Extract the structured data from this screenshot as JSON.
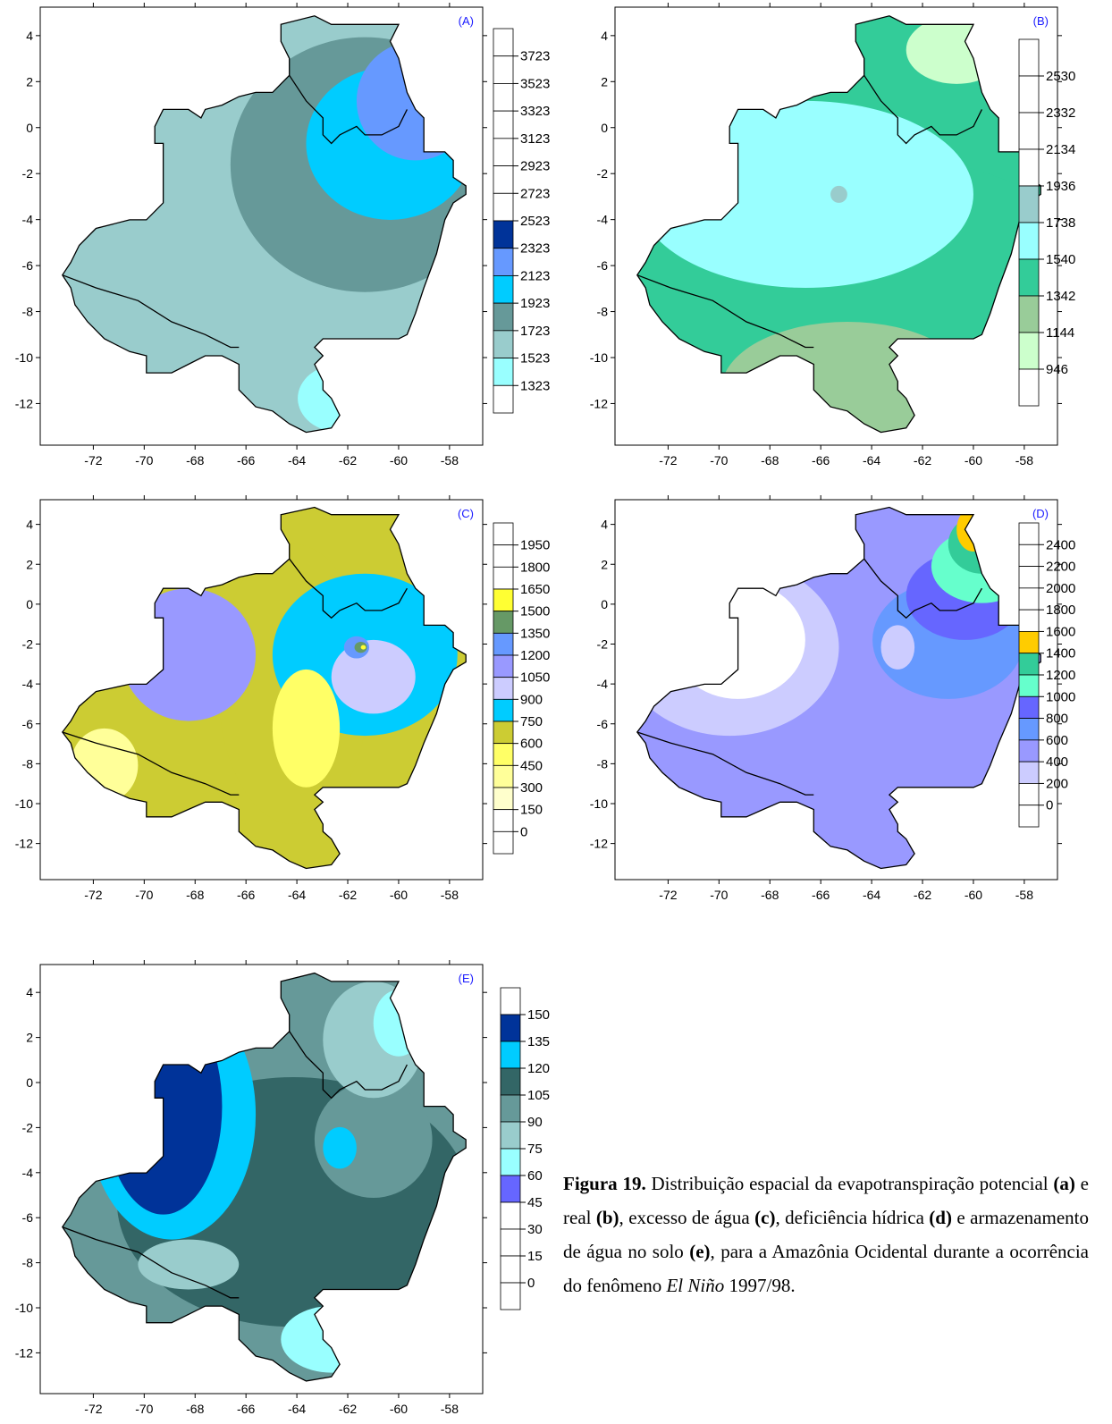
{
  "panels": [
    {
      "id": "A",
      "label": "(A)",
      "legend_ticks": [
        "3723",
        "3523",
        "3323",
        "3123",
        "2923",
        "2723",
        "2523",
        "2323",
        "2123",
        "1923",
        "1723",
        "1523",
        "1323"
      ],
      "legend_colors": [
        "#ffffff",
        "#ffffff",
        "#ffffff",
        "#ffffff",
        "#ffffff",
        "#ffffff",
        "#ffffff",
        "#003399",
        "#6699ff",
        "#00ccff",
        "#669999",
        "#99cccc",
        "#99ffff"
      ],
      "region_colors": [
        "#99cccc",
        "#669999",
        "#00ccff",
        "#6699ff",
        "#003399",
        "#99ffff"
      ],
      "xticks": [
        "-72",
        "-70",
        "-68",
        "-66",
        "-64",
        "-62",
        "-60",
        "-58"
      ],
      "yticks": [
        "4",
        "2",
        "0",
        "-2",
        "-4",
        "-6",
        "-8",
        "-10",
        "-12"
      ]
    },
    {
      "id": "B",
      "label": "(B)",
      "legend_ticks": [
        "2530",
        "2332",
        "2134",
        "1936",
        "1738",
        "1540",
        "1342",
        "1144",
        "946"
      ],
      "legend_colors": [
        "#ffffff",
        "#ffffff",
        "#ffffff",
        "#ffffff",
        "#99cccc",
        "#99ffff",
        "#33cc99",
        "#99cc99",
        "#ccffcc"
      ],
      "region_colors": [
        "#33cc99",
        "#99ffff",
        "#99cc99",
        "#ccffcc",
        "#99cccc"
      ],
      "xticks": [
        "-72",
        "-70",
        "-68",
        "-66",
        "-64",
        "-62",
        "-60",
        "-58"
      ],
      "yticks": [
        "4",
        "2",
        "0",
        "-2",
        "-4",
        "-6",
        "-8",
        "-10",
        "-12"
      ]
    },
    {
      "id": "C",
      "label": "(C)",
      "legend_ticks": [
        "1950",
        "1800",
        "1650",
        "1500",
        "1350",
        "1200",
        "1050",
        "900",
        "750",
        "600",
        "450",
        "300",
        "150",
        "0"
      ],
      "legend_colors": [
        "#ffffff",
        "#ffffff",
        "#ffffff",
        "#ffff33",
        "#669966",
        "#6699ff",
        "#9999ff",
        "#ccccff",
        "#00ccff",
        "#cccc33",
        "#ffff66",
        "#ffff99",
        "#ffffcc"
      ],
      "region_colors": [
        "#cccc33",
        "#00ccff",
        "#ccccff",
        "#9999ff",
        "#ffff66",
        "#ffff99",
        "#6699ff",
        "#669966",
        "#ffff33"
      ],
      "xticks": [
        "-72",
        "-70",
        "-68",
        "-66",
        "-64",
        "-62",
        "-60",
        "-58"
      ],
      "yticks": [
        "4",
        "2",
        "0",
        "-2",
        "-4",
        "-6",
        "-8",
        "-10",
        "-12"
      ]
    },
    {
      "id": "D",
      "label": "(D)",
      "legend_ticks": [
        "2400",
        "2200",
        "2000",
        "1800",
        "1600",
        "1400",
        "1200",
        "1000",
        "800",
        "600",
        "400",
        "200",
        "0"
      ],
      "legend_colors": [
        "#ffffff",
        "#ffffff",
        "#ffffff",
        "#ffffff",
        "#ffffff",
        "#ffcc00",
        "#33cc99",
        "#66ffcc",
        "#6666ff",
        "#6699ff",
        "#9999ff",
        "#ccccff"
      ],
      "region_colors": [
        "#9999ff",
        "#ccccff",
        "#ffffff",
        "#6699ff",
        "#6666ff",
        "#66ffcc",
        "#33cc99",
        "#ffcc00"
      ],
      "xticks": [
        "-72",
        "-70",
        "-68",
        "-66",
        "-64",
        "-62",
        "-60",
        "-58"
      ],
      "yticks": [
        "4",
        "2",
        "0",
        "-2",
        "-4",
        "-6",
        "-8",
        "-10",
        "-12"
      ]
    },
    {
      "id": "E",
      "label": "(E)",
      "legend_ticks": [
        "150",
        "135",
        "120",
        "105",
        "90",
        "75",
        "60",
        "45",
        "30",
        "15",
        "0"
      ],
      "legend_colors": [
        "#ffffff",
        "#003399",
        "#00ccff",
        "#336666",
        "#669999",
        "#99cccc",
        "#99ffff",
        "#6666ff",
        "#ffffff",
        "#ffffff",
        "#ffffff"
      ],
      "region_colors": [
        "#669999",
        "#336666",
        "#003399",
        "#00ccff",
        "#99cccc",
        "#99ffff",
        "#6666ff"
      ],
      "xticks": [
        "-72",
        "-70",
        "-68",
        "-66",
        "-64",
        "-62",
        "-60",
        "-58"
      ],
      "yticks": [
        "4",
        "2",
        "0",
        "-2",
        "-4",
        "-6",
        "-8",
        "-10",
        "-12"
      ]
    }
  ],
  "caption": {
    "fig_label": "Figura 19.",
    "t1": " Distribuição espacial da evapotranspiração potencial ",
    "a": "(a)",
    "t2": " e real ",
    "b": "(b)",
    "t3": ", excesso de água ",
    "c": "(c)",
    "t4": ", deficiência hídrica ",
    "d": "(d)",
    "t5": " e armazenamento de água no solo ",
    "e": "(e)",
    "t6": ", para a Amazônia Ocidental durante a ocorrência do fenômeno ",
    "italic": "El Niño",
    "t7": " 1997/98."
  }
}
